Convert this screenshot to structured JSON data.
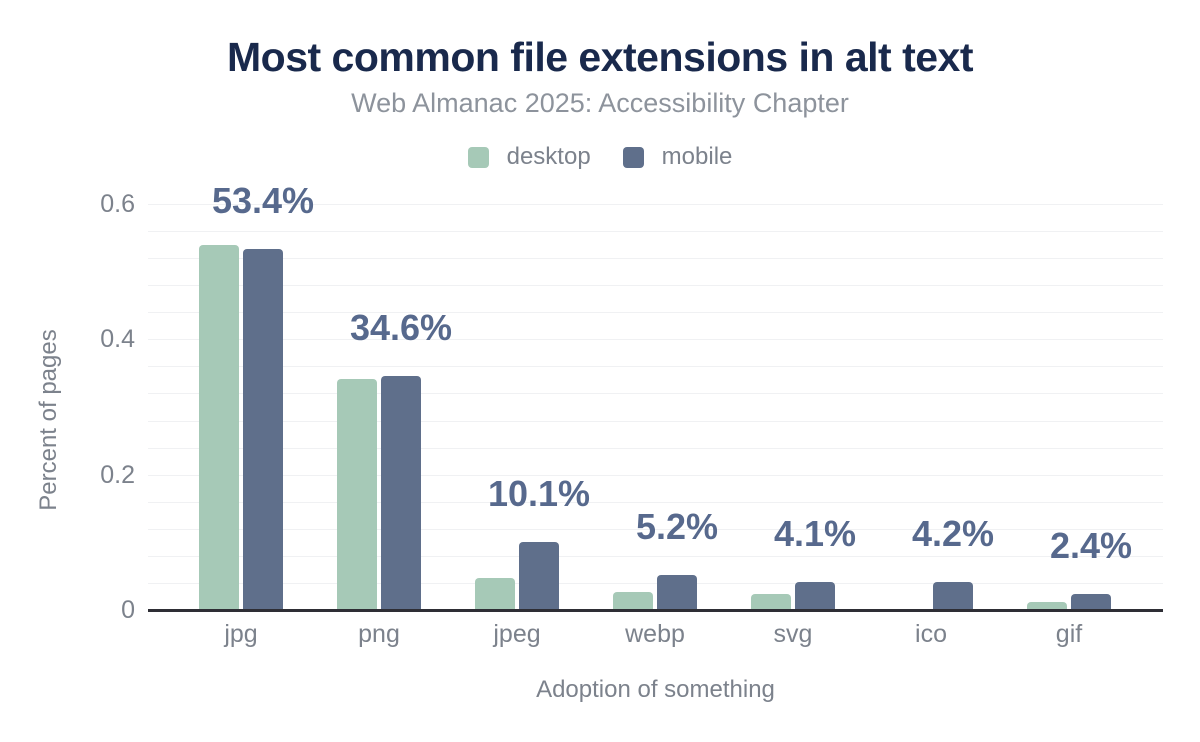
{
  "chart_data": {
    "type": "bar",
    "title": "Most common file extensions in alt text",
    "subtitle": "Web Almanac 2025: Accessibility Chapter",
    "xlabel": "Adoption of something",
    "ylabel": "Percent of pages",
    "categories": [
      "jpg",
      "png",
      "jpeg",
      "webp",
      "svg",
      "ico",
      "gif"
    ],
    "series": [
      {
        "name": "desktop",
        "color": "#a6c9b7",
        "values": [
          0.539,
          0.341,
          0.048,
          0.027,
          0.024,
          0,
          0.012
        ]
      },
      {
        "name": "mobile",
        "color": "#5f6f8b",
        "values": [
          0.534,
          0.346,
          0.101,
          0.052,
          0.041,
          0.042,
          0.024
        ]
      }
    ],
    "bar_labels": [
      "53.4%",
      "34.6%",
      "10.1%",
      "5.2%",
      "4.1%",
      "4.2%",
      "2.4%"
    ],
    "ylim": [
      0,
      0.6
    ],
    "y_ticks": [
      0,
      0.2,
      0.4,
      0.6
    ],
    "y_tick_labels": [
      "0",
      "0.2",
      "0.4",
      "0.6"
    ],
    "minor_grid_step": 0.04,
    "grid": true,
    "legend_position": "top",
    "colors": {
      "title": "#19294c",
      "subtitle": "#8d939c",
      "axis_text": "#7c828c",
      "bar_label": "#57698d",
      "gridline": "#f0f1f3",
      "axis_line": "#2e2e35"
    }
  }
}
